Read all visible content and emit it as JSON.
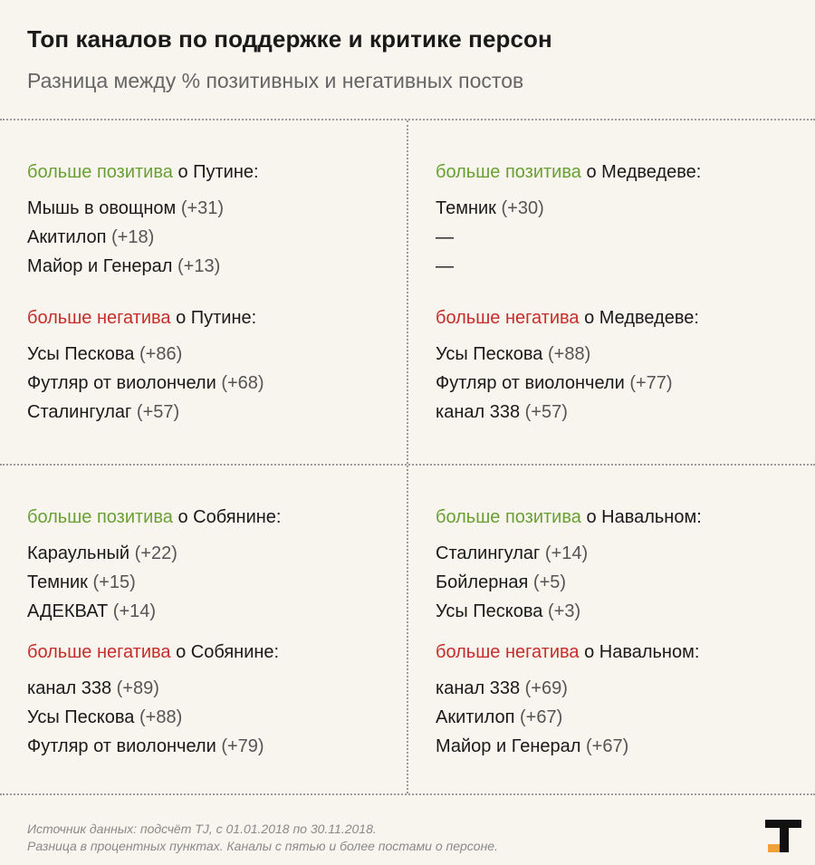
{
  "title": "Топ каналов по поддержке и критике персон",
  "subtitle": "Разница между % позитивных и негативных постов",
  "colors": {
    "positive": "#6aa033",
    "negative": "#c62d2b",
    "logo_accent": "#f2a03a"
  },
  "panels": {
    "putin_pos": {
      "heading_colored": "больше позитива",
      "heading_rest": " о Путине:",
      "items": [
        {
          "name": "Мышь в овощном",
          "score": "(+31)"
        },
        {
          "name": "Акитилоп",
          "score": "(+18)"
        },
        {
          "name": "Майор и Генерал",
          "score": "(+13)"
        }
      ]
    },
    "putin_neg": {
      "heading_colored": "больше негатива",
      "heading_rest": " о Путине:",
      "items": [
        {
          "name": "Усы Пескова",
          "score": "(+86)"
        },
        {
          "name": "Футляр от виолончели",
          "score": "(+68)"
        },
        {
          "name": "Сталингулаг",
          "score": "(+57)"
        }
      ]
    },
    "medvedev_pos": {
      "heading_colored": "больше позитива",
      "heading_rest": " о Медведеве:",
      "items": [
        {
          "name": "Темник",
          "score": "(+30)"
        },
        {
          "name": "—",
          "score": ""
        },
        {
          "name": "—",
          "score": ""
        }
      ]
    },
    "medvedev_neg": {
      "heading_colored": "больше негатива",
      "heading_rest": " о Медведеве:",
      "items": [
        {
          "name": "Усы Пескова",
          "score": "(+88)"
        },
        {
          "name": "Футляр от виолончели",
          "score": "(+77)"
        },
        {
          "name": "канал 338",
          "score": "(+57)"
        }
      ]
    },
    "sobyanin_pos": {
      "heading_colored": "больше позитива",
      "heading_rest": " о Собянине:",
      "items": [
        {
          "name": "Караульный",
          "score": "(+22)"
        },
        {
          "name": "Темник",
          "score": "(+15)"
        },
        {
          "name": "АДЕКВАТ",
          "score": "(+14)"
        }
      ]
    },
    "sobyanin_neg": {
      "heading_colored": "больше негатива",
      "heading_rest": " о Собянине:",
      "items": [
        {
          "name": "канал 338",
          "score": "(+89)"
        },
        {
          "name": "Усы Пескова",
          "score": "(+88)"
        },
        {
          "name": "Футляр от виолончели",
          "score": "(+79)"
        }
      ]
    },
    "navalny_pos": {
      "heading_colored": "больше позитива",
      "heading_rest": " о Навальном:",
      "items": [
        {
          "name": "Сталингулаг",
          "score": "(+14)"
        },
        {
          "name": "Бойлерная",
          "score": "(+5)"
        },
        {
          "name": "Усы Пескова",
          "score": "(+3)"
        }
      ]
    },
    "navalny_neg": {
      "heading_colored": "больше негатива",
      "heading_rest": " о Навальном:",
      "items": [
        {
          "name": "канал 338",
          "score": "(+69)"
        },
        {
          "name": "Акитилоп",
          "score": "(+67)"
        },
        {
          "name": "Майор и Генерал",
          "score": "(+67)"
        }
      ]
    }
  },
  "footer": {
    "line1": "Источник данных: подсчёт TJ, с 01.01.2018 по 30.11.2018.",
    "line2": "Разница в процентных пунктах. Каналы с пятью и более постами о персоне."
  },
  "logo": {
    "icon": "tj-logo-icon"
  }
}
